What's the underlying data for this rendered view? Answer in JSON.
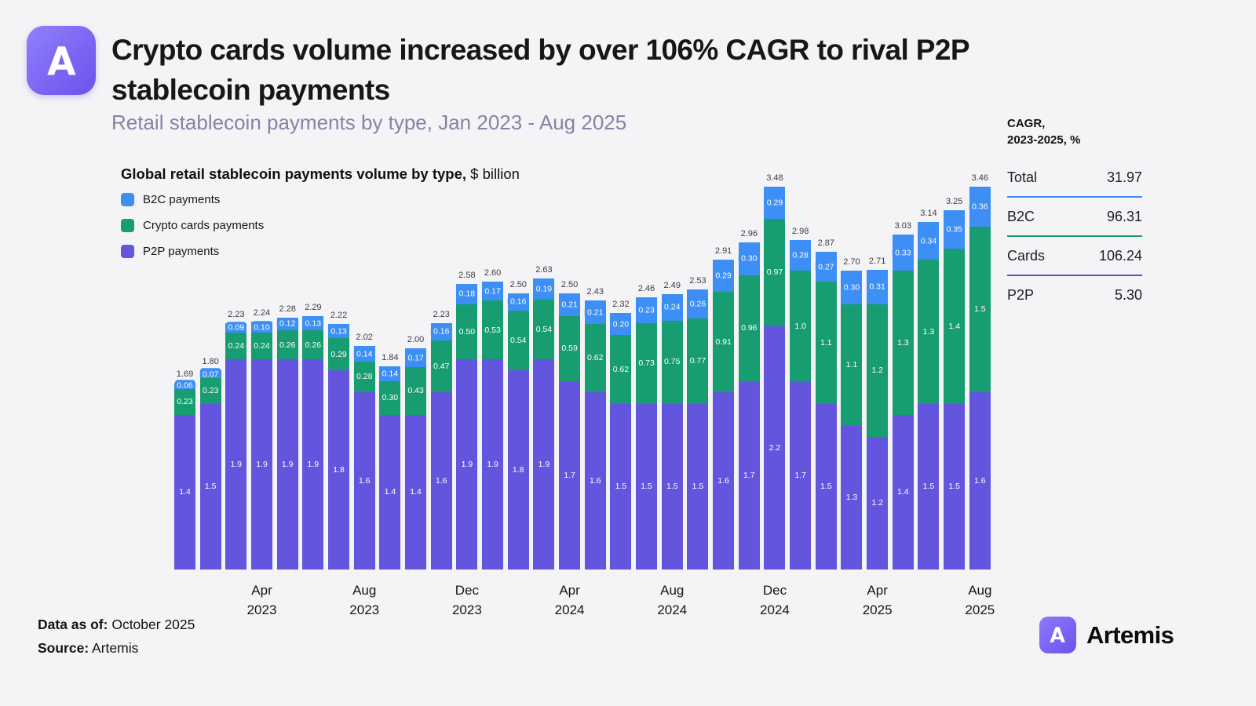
{
  "header": {
    "title_line1": "Crypto cards volume increased by over 106% CAGR to rival P2P",
    "title_line2": "stablecoin payments",
    "subtitle": "Retail stablecoin payments by type, Jan 2023 - Aug 2025"
  },
  "chart": {
    "heading_bold": "Global retail stablecoin payments volume by type,",
    "heading_unit": " $ billion",
    "legend": [
      {
        "label": "B2C payments",
        "color": "#3d8ef5"
      },
      {
        "label": "Crypto cards payments",
        "color": "#189c72"
      },
      {
        "label": "P2P payments",
        "color": "#6355dd"
      }
    ]
  },
  "chart_data": {
    "type": "bar",
    "stacked": true,
    "title": "Global retail stablecoin payments volume by type, $ billion",
    "unit": "$ billion",
    "period": "Jan 2023 - Aug 2025",
    "totals": [
      "1.69",
      "1.80",
      "2.23",
      "2.24",
      "2.28",
      "2.29",
      "2.22",
      "2.02",
      "1.84",
      "2.00",
      "2.23",
      "2.58",
      "2.60",
      "2.50",
      "2.63",
      "2.50",
      "2.43",
      "2.32",
      "2.46",
      "2.49",
      "2.53",
      "2.91",
      "2.96",
      "3.48",
      "2.98",
      "2.87",
      "2.70",
      "2.71",
      "3.03",
      "3.14",
      "3.25",
      "3.46"
    ],
    "series": [
      {
        "name": "P2P payments",
        "color": "#6355dd",
        "values": [
          "1.4",
          "1.5",
          "1.9",
          "1.9",
          "1.9",
          "1.9",
          "1.8",
          "1.6",
          "1.4",
          "1.4",
          "1.6",
          "1.9",
          "1.9",
          "1.8",
          "1.9",
          "1.7",
          "1.6",
          "1.5",
          "1.5",
          "1.5",
          "1.5",
          "1.6",
          "1.7",
          "2.2",
          "1.7",
          "1.5",
          "1.3",
          "1.2",
          "1.4",
          "1.5",
          "1.5",
          "1.6"
        ]
      },
      {
        "name": "Crypto cards payments",
        "color": "#189c72",
        "values": [
          "0.23",
          "0.23",
          "0.24",
          "0.24",
          "0.26",
          "0.26",
          "0.29",
          "0.28",
          "0.30",
          "0.43",
          "0.47",
          "0.50",
          "0.53",
          "0.54",
          "0.54",
          "0.59",
          "0.62",
          "0.62",
          "0.73",
          "0.75",
          "0.77",
          "0.91",
          "0.96",
          "0.97",
          "1.0",
          "1.1",
          "1.1",
          "1.2",
          "1.3",
          "1.3",
          "1.4",
          "1.5"
        ]
      },
      {
        "name": "B2C payments",
        "color": "#3d8ef5",
        "values": [
          "0.06",
          "0.07",
          "0.09",
          "0.10",
          "0.12",
          "0.13",
          "0.13",
          "0.14",
          "0.14",
          "0.17",
          "0.16",
          "0.18",
          "0.17",
          "0.16",
          "0.19",
          "0.21",
          "0.21",
          "0.20",
          "0.23",
          "0.24",
          "0.26",
          "0.29",
          "0.30",
          "0.29",
          "0.28",
          "0.27",
          "0.30",
          "0.31",
          "0.33",
          "0.34",
          "0.35",
          "0.36"
        ]
      }
    ],
    "x_ticks": [
      {
        "index": 3,
        "line1": "Apr",
        "line2": "2023"
      },
      {
        "index": 7,
        "line1": "Aug",
        "line2": "2023"
      },
      {
        "index": 11,
        "line1": "Dec",
        "line2": "2023"
      },
      {
        "index": 15,
        "line1": "Apr",
        "line2": "2024"
      },
      {
        "index": 19,
        "line1": "Aug",
        "line2": "2024"
      },
      {
        "index": 23,
        "line1": "Dec",
        "line2": "2024"
      },
      {
        "index": 27,
        "line1": "Apr",
        "line2": "2025"
      },
      {
        "index": 31,
        "line1": "Aug",
        "line2": "2025"
      }
    ]
  },
  "cagr_panel": {
    "heading_line1": "CAGR,",
    "heading_line2": "2023-2025, %",
    "rows": [
      {
        "label": "Total",
        "value": "31.97",
        "divider_color": "#3d8ef5"
      },
      {
        "label": "B2C",
        "value": "96.31",
        "divider_color": "#189c72"
      },
      {
        "label": "Cards",
        "value": "106.24",
        "divider_color": "#5a4cd4"
      },
      {
        "label": "P2P",
        "value": "5.30",
        "divider_color": ""
      }
    ]
  },
  "footer": {
    "data_as_of_label": "Data as of:",
    "data_as_of_value": " October 2025",
    "source_label": "Source:",
    "source_value": " Artemis"
  },
  "brand": {
    "wordmark": "Artemis"
  }
}
